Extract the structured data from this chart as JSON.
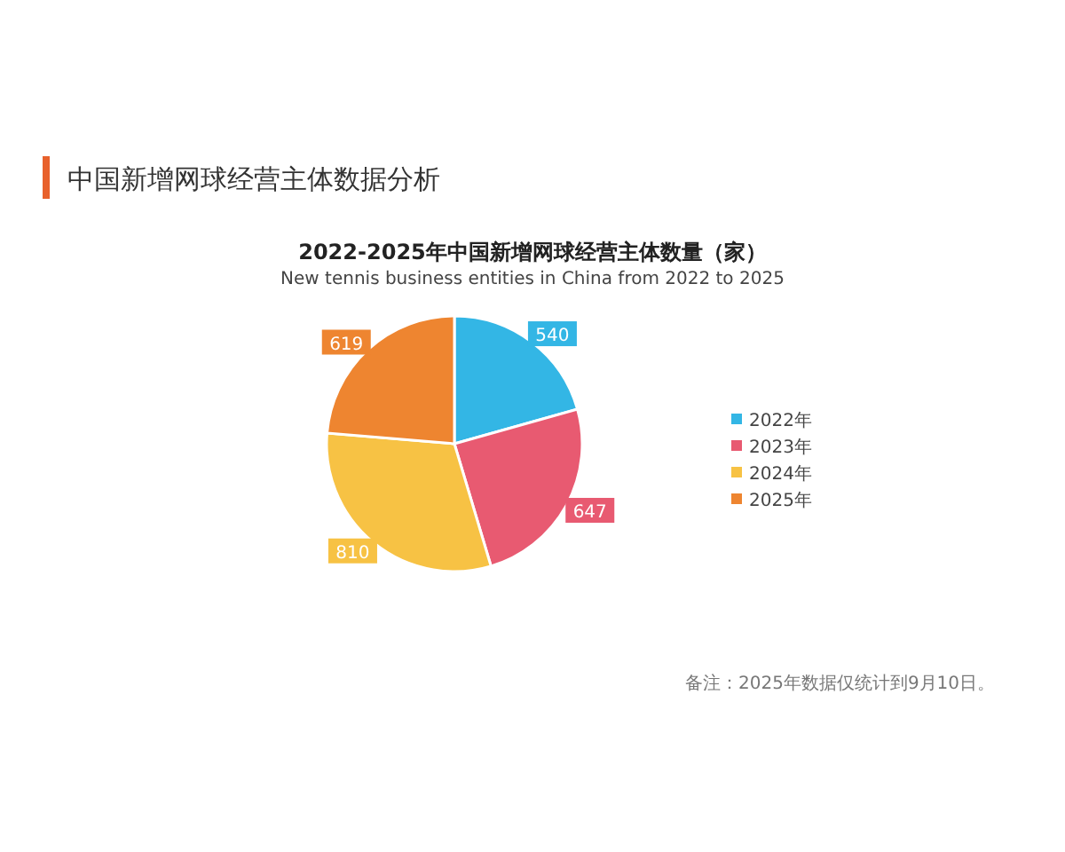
{
  "chart_data": {
    "type": "pie",
    "title": "2022-2025年中国新增网球经营主体数量（家）",
    "subtitle": "New tennis business entities in China from 2022 to 2025",
    "categories": [
      "2022年",
      "2023年",
      "2024年",
      "2025年"
    ],
    "values": [
      540,
      647,
      810,
      619
    ],
    "colors": [
      "#33b6e5",
      "#e85a71",
      "#f7c244",
      "#ee8530"
    ],
    "data_labels": true,
    "legend": "right",
    "annotations": [
      "中国新增网球经营主体数据分析",
      "备注：2025年数据仅统计到9月10日。"
    ]
  }
}
